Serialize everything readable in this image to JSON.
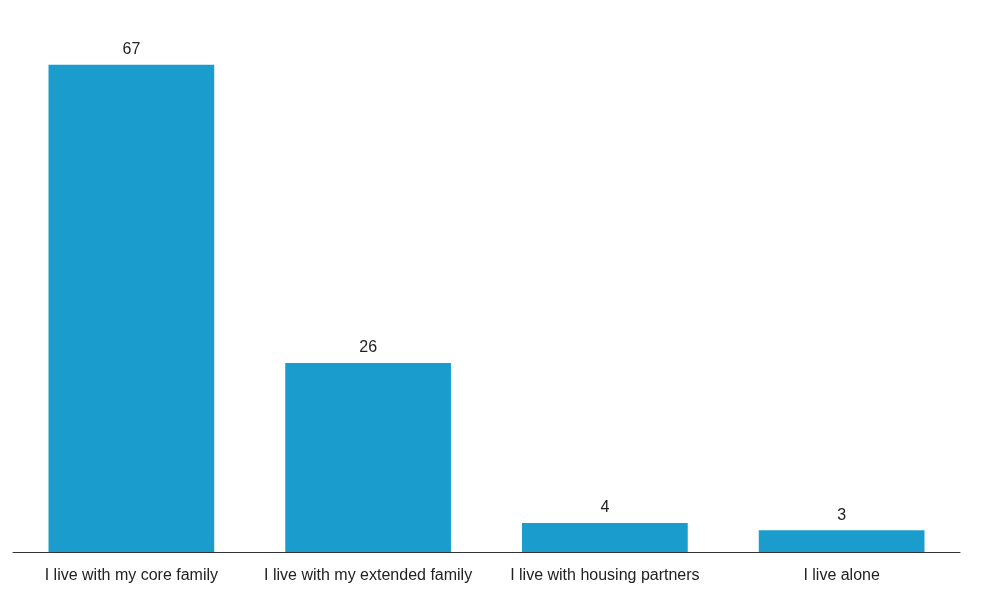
{
  "chart_data": {
    "type": "bar",
    "categories": [
      "I live with my core family",
      "I live with my extended family",
      "I live with housing partners",
      "I live alone"
    ],
    "values": [
      67,
      26,
      4,
      3
    ],
    "color": "#1a9dcc",
    "data_labels": true
  }
}
